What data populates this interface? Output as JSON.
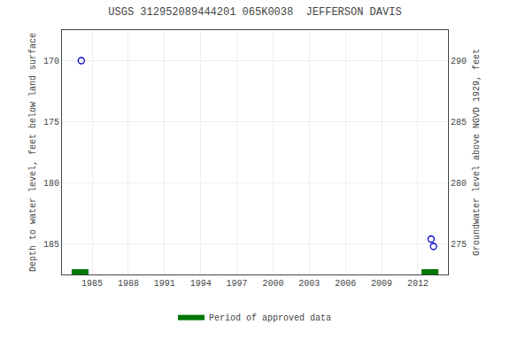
{
  "chart_data": {
    "type": "scatter",
    "title": "USGS 312952089444201 065K0038  JEFFERSON DAVIS",
    "y_label": "Depth to water level, feet below land surface",
    "y2_label": "Groundwater level above NGVD 1929, feet",
    "x": [
      1984.1,
      2013.1,
      2013.3
    ],
    "values": [
      170.0,
      184.6,
      185.2
    ],
    "color": "#0000cc",
    "marker": "circle-open",
    "xlim": [
      1982.5,
      2014.5
    ],
    "xticks": [
      1985,
      1988,
      1991,
      1994,
      1997,
      2000,
      2003,
      2006,
      2009,
      2012
    ],
    "ylim": [
      187.5,
      167.5
    ],
    "yticks": [
      170,
      175,
      180,
      185
    ],
    "y2lim": [
      272.5,
      292.5
    ],
    "y2ticks": [
      290,
      285,
      280,
      275
    ],
    "grid": true,
    "periods": [
      [
        1983.3,
        1984.7
      ],
      [
        2012.3,
        2013.7
      ]
    ],
    "period_label": "Period of approved data",
    "period_color": "#007700",
    "legend": "bottom"
  }
}
